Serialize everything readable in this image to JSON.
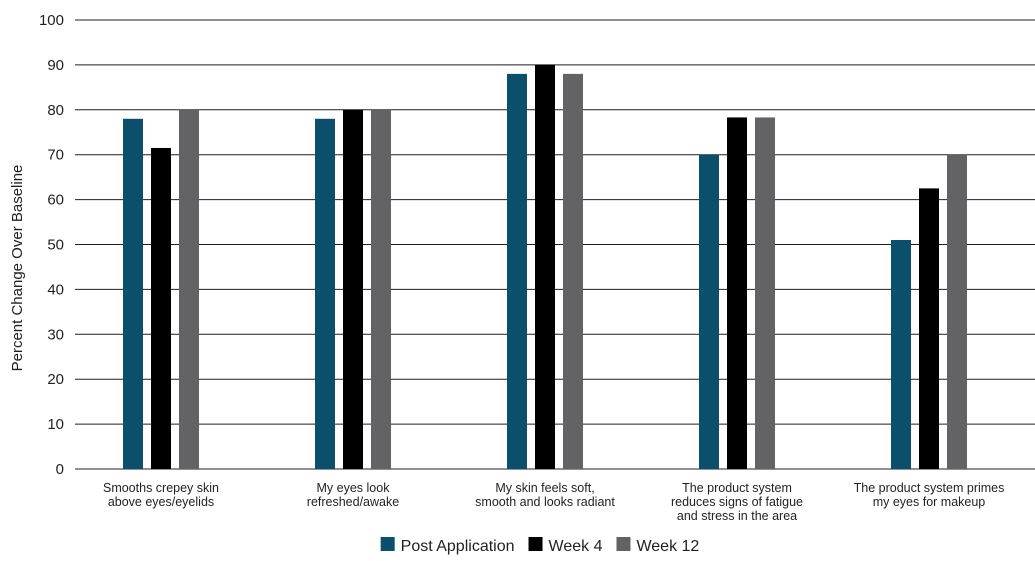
{
  "chart_data": {
    "type": "bar",
    "title": "",
    "xlabel": "",
    "ylabel": "Percent Change Over Baseline",
    "ylim": [
      0,
      100
    ],
    "yticks": [
      0,
      10,
      20,
      30,
      40,
      50,
      60,
      70,
      80,
      90,
      100
    ],
    "grid": true,
    "legend_position": "bottom",
    "categories": [
      [
        "Smooths crepey skin",
        "above eyes/eyelids"
      ],
      [
        "My eyes look",
        "refreshed/awake"
      ],
      [
        "My skin feels soft,",
        "smooth and looks radiant"
      ],
      [
        "The product system",
        "reduces signs of fatigue",
        "and stress in the area"
      ],
      [
        "The product system primes",
        "my eyes for makeup"
      ]
    ],
    "series": [
      {
        "name": "Post Application",
        "color": "#0b4f6c",
        "values": [
          78,
          78,
          88,
          70,
          51
        ]
      },
      {
        "name": "Week 4",
        "color": "#000000",
        "values": [
          71.5,
          80,
          90,
          78.3,
          62.5
        ]
      },
      {
        "name": "Week 12",
        "color": "#636366",
        "values": [
          80,
          80,
          88,
          78.3,
          70
        ]
      }
    ]
  }
}
